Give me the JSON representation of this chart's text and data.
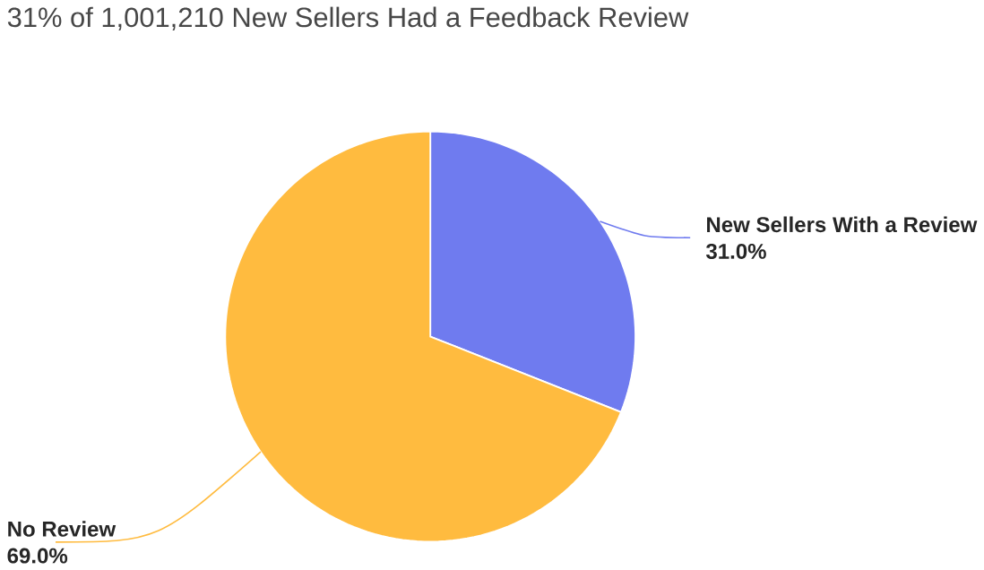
{
  "chart_data": {
    "type": "pie",
    "title": "31% of 1,001,210 New Sellers Had a Feedback Review",
    "categories": [
      "New Sellers With a Review",
      "No Review"
    ],
    "values": [
      31.0,
      69.0
    ],
    "value_labels": [
      "31.0%",
      "69.0%"
    ],
    "colors": [
      "#6f7bef",
      "#ffbb3f"
    ]
  }
}
